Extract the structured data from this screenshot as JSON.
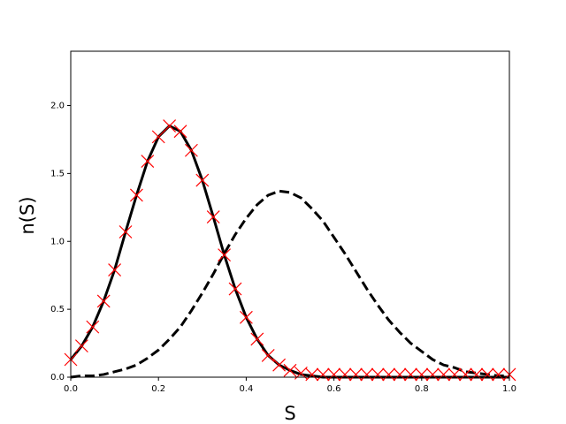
{
  "chart_data": {
    "type": "line",
    "x_label": "S",
    "y_label": "n(S)",
    "x": [
      0,
      0.025,
      0.05,
      0.075,
      0.1,
      0.125,
      0.15,
      0.175,
      0.2,
      0.225,
      0.25,
      0.275,
      0.3,
      0.325,
      0.35,
      0.375,
      0.4,
      0.425,
      0.45,
      0.475,
      0.5,
      0.525,
      0.55,
      0.575,
      0.6,
      0.625,
      0.65,
      0.675,
      0.7,
      0.725,
      0.75,
      0.775,
      0.8,
      0.825,
      0.85,
      0.875,
      0.9,
      0.925,
      0.95,
      0.975,
      1
    ],
    "series": [
      {
        "color": "#000000",
        "style": "solid",
        "values": [
          0.13,
          0.23,
          0.37,
          0.56,
          0.79,
          1.07,
          1.34,
          1.59,
          1.77,
          1.85,
          1.81,
          1.67,
          1.45,
          1.18,
          0.9,
          0.65,
          0.44,
          0.28,
          0.16,
          0.09,
          0.05,
          0.02,
          0.01,
          0,
          0,
          0,
          0,
          0,
          0,
          0,
          0,
          0,
          0,
          0,
          0,
          0,
          0,
          0,
          0,
          0,
          0
        ]
      },
      {
        "color": "#000000",
        "style": "dashed",
        "values": [
          0,
          0.01,
          0.01,
          0.02,
          0.04,
          0.06,
          0.09,
          0.14,
          0.2,
          0.28,
          0.37,
          0.49,
          0.62,
          0.76,
          0.91,
          1.05,
          1.17,
          1.27,
          1.34,
          1.37,
          1.36,
          1.32,
          1.24,
          1.15,
          1.03,
          0.91,
          0.78,
          0.65,
          0.53,
          0.42,
          0.33,
          0.25,
          0.19,
          0.13,
          0.09,
          0.07,
          0.04,
          0.03,
          0.02,
          0.01,
          0.01
        ]
      },
      {
        "color": "#ff0000",
        "style": "markers",
        "values": [
          0.13,
          0.23,
          0.37,
          0.56,
          0.79,
          1.07,
          1.34,
          1.59,
          1.77,
          1.85,
          1.81,
          1.67,
          1.45,
          1.18,
          0.9,
          0.65,
          0.44,
          0.28,
          0.16,
          0.09,
          0.05,
          0.03,
          0.02,
          0.02,
          0.02,
          0.02,
          0.02,
          0.02,
          0.02,
          0.02,
          0.02,
          0.02,
          0.02,
          0.02,
          0.02,
          0.02,
          0.02,
          0.02,
          0.02,
          0.02,
          0.02
        ]
      }
    ],
    "xlim": [
      0,
      1
    ],
    "ylim": [
      0,
      2.4
    ],
    "xticks": [
      {
        "value": 0,
        "label": "0.0"
      },
      0.2,
      0.4,
      0.6,
      0.8,
      {
        "value": 1,
        "label": "1.0"
      }
    ],
    "yticks": [
      {
        "value": 0,
        "label": "0.0"
      },
      0.5,
      {
        "value": 1,
        "label": "1.0"
      },
      1.5,
      {
        "value": 2,
        "label": "2.0"
      }
    ],
    "grid": false
  }
}
